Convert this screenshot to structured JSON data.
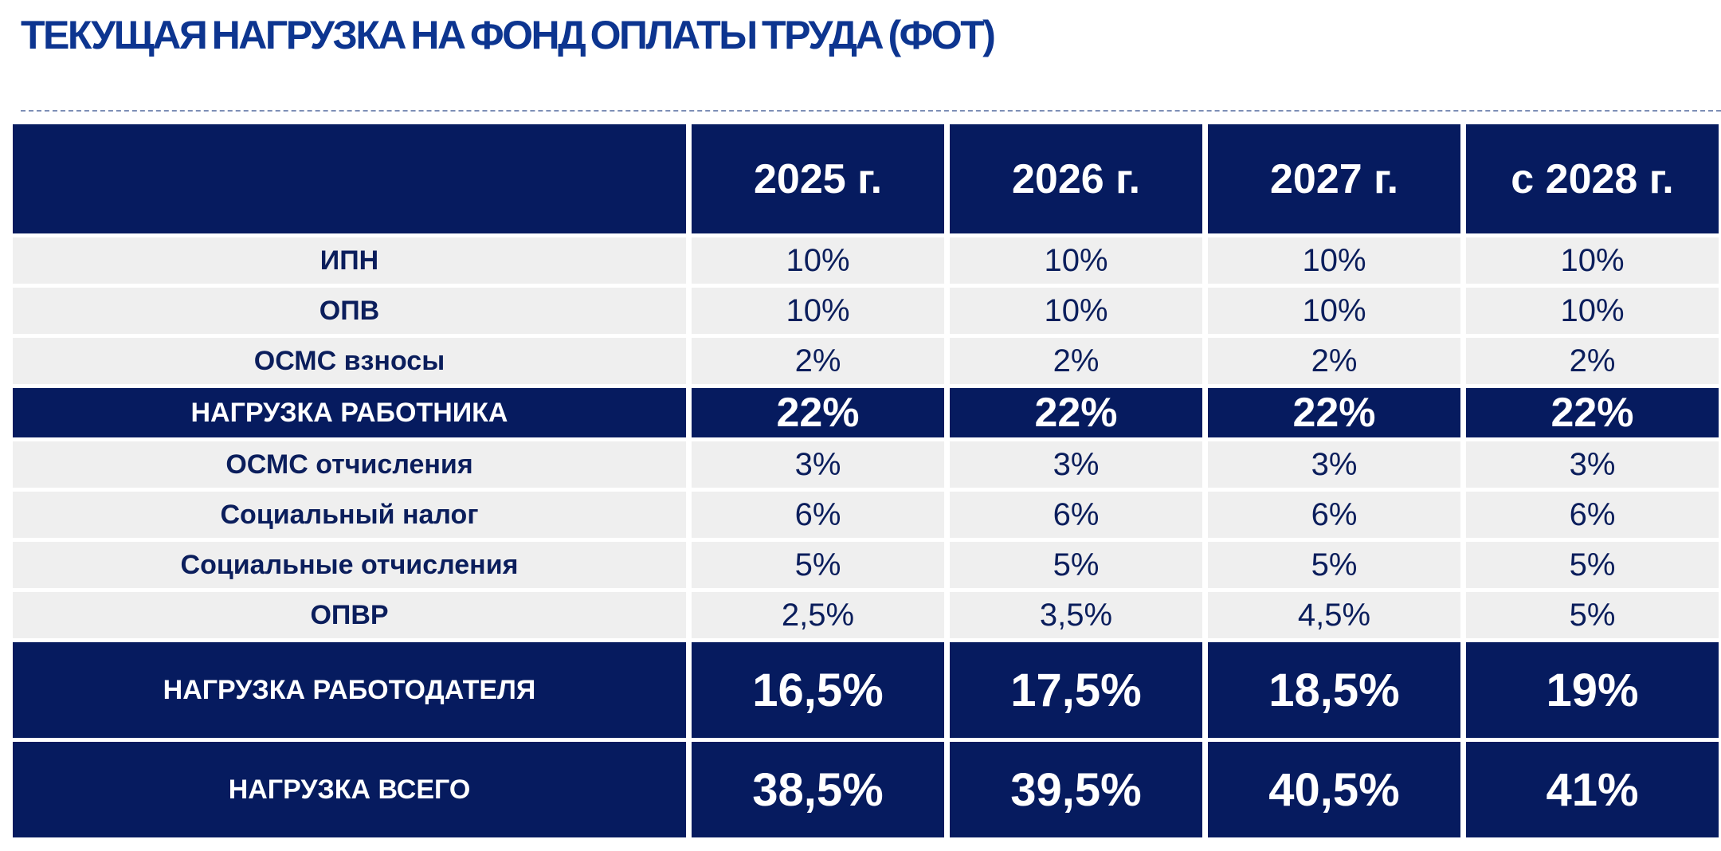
{
  "title": "ТЕКУЩАЯ НАГРУЗКА НА ФОНД ОПЛАТЫ ТРУДА (ФОТ)",
  "table": {
    "columns": [
      "2025 г.",
      "2026 г.",
      "2027 г.",
      "с 2028 г."
    ],
    "rows": [
      {
        "label": "ИПН",
        "values": [
          "10%",
          "10%",
          "10%",
          "10%"
        ],
        "style": "light"
      },
      {
        "label": "ОПВ",
        "values": [
          "10%",
          "10%",
          "10%",
          "10%"
        ],
        "style": "light"
      },
      {
        "label": "ОСМС взносы",
        "values": [
          "2%",
          "2%",
          "2%",
          "2%"
        ],
        "style": "light"
      },
      {
        "label": "НАГРУЗКА РАБОТНИКА",
        "values": [
          "22%",
          "22%",
          "22%",
          "22%"
        ],
        "style": "dark"
      },
      {
        "label": "ОСМС отчисления",
        "values": [
          "3%",
          "3%",
          "3%",
          "3%"
        ],
        "style": "light"
      },
      {
        "label": "Социальный налог",
        "values": [
          "6%",
          "6%",
          "6%",
          "6%"
        ],
        "style": "light"
      },
      {
        "label": "Социальные отчисления",
        "values": [
          "5%",
          "5%",
          "5%",
          "5%"
        ],
        "style": "light"
      },
      {
        "label": "ОПВР",
        "values": [
          "2,5%",
          "3,5%",
          "4,5%",
          "5%"
        ],
        "style": "light"
      },
      {
        "label": "НАГРУЗКА РАБОТОДАТЕЛЯ",
        "values": [
          "16,5%",
          "17,5%",
          "18,5%",
          "19%"
        ],
        "style": "dark"
      },
      {
        "label": "НАГРУЗКА ВСЕГО",
        "values": [
          "38,5%",
          "39,5%",
          "40,5%",
          "41%"
        ],
        "style": "dark"
      }
    ]
  }
}
